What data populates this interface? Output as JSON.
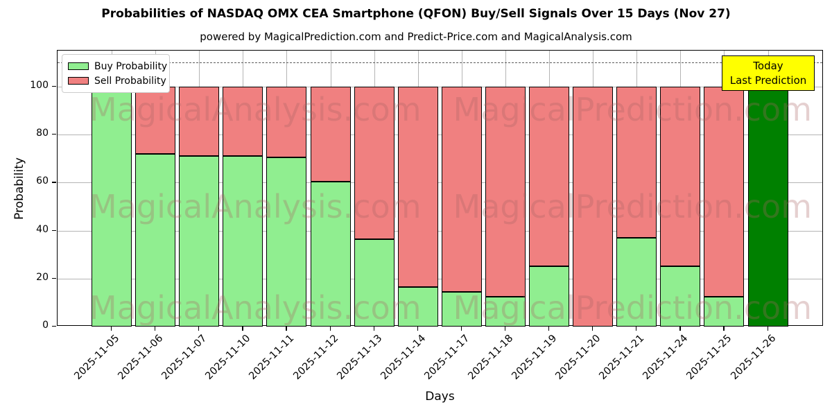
{
  "title": "Probabilities of NASDAQ OMX CEA Smartphone (QFON) Buy/Sell Signals Over 15 Days (Nov 27)",
  "subtitle": "powered by MagicalPrediction.com and Predict-Price.com and MagicalAnalysis.com",
  "legend": {
    "items": [
      {
        "label": "Buy Probability",
        "color": "#90EE90"
      },
      {
        "label": "Sell Probability",
        "color": "#F08080"
      }
    ]
  },
  "annotation_box": {
    "line1": "Today",
    "line2": "Last Prediction",
    "bg_color": "#FFFF00"
  },
  "watermarks": [
    "MagicalAnalysis.com",
    "MagicalPrediction.com"
  ],
  "chart_data": {
    "type": "bar",
    "stacked": true,
    "title": "Probabilities of NASDAQ OMX CEA Smartphone (QFON) Buy/Sell Signals Over 15 Days (Nov 27)",
    "xlabel": "Days",
    "ylabel": "Probability",
    "categories": [
      "2025-11-05",
      "2025-11-06",
      "2025-11-07",
      "2025-11-10",
      "2025-11-11",
      "2025-11-12",
      "2025-11-13",
      "2025-11-14",
      "2025-11-17",
      "2025-11-18",
      "2025-11-19",
      "2025-11-20",
      "2025-11-21",
      "2025-11-24",
      "2025-11-25",
      "2025-11-26"
    ],
    "series": [
      {
        "name": "Buy Probability",
        "color": "#90EE90",
        "values": [
          100,
          72,
          71,
          71,
          70.5,
          60.5,
          36.5,
          16.5,
          14.5,
          12.5,
          25,
          0,
          37,
          25,
          12.5,
          100
        ]
      },
      {
        "name": "Sell Probability",
        "color": "#F08080",
        "values": [
          0,
          28,
          29,
          29,
          29.5,
          39.5,
          63.5,
          83.5,
          85.5,
          87.5,
          75,
          100,
          63,
          75,
          87.5,
          0
        ]
      }
    ],
    "today_bar": {
      "category": "2025-11-26",
      "index": 15,
      "color": "#008000",
      "value": 100
    },
    "ylim": [
      0,
      115
    ],
    "y_ticks": [
      0,
      20,
      40,
      60,
      80,
      100
    ],
    "dashed_line_y": 110,
    "grid": true,
    "bar_edge_color": "#000000",
    "legend_position": "upper left"
  }
}
